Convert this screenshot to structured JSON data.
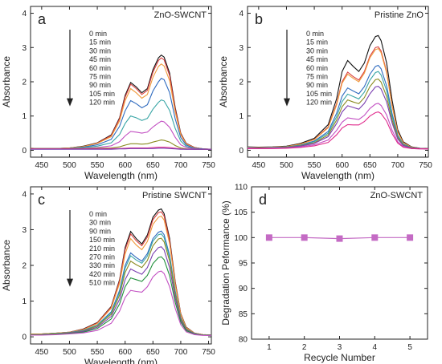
{
  "figure": {
    "panel_count": 4
  },
  "chart_data": [
    {
      "type": "line",
      "panel_letter": "a",
      "sample_label": "ZnO-SWCNT",
      "xlabel": "Wavelength (nm)",
      "ylabel": "Absorbance",
      "xlim": [
        430,
        755
      ],
      "ylim": [
        -0.2,
        4.2
      ],
      "xticks": [
        450,
        500,
        550,
        600,
        650,
        700,
        750
      ],
      "yticks": [
        0,
        1,
        2,
        3,
        4
      ],
      "legend_arrow": "down",
      "legend_position": "center-left",
      "x": [
        430,
        450,
        475,
        500,
        525,
        550,
        575,
        590,
        600,
        610,
        620,
        630,
        640,
        650,
        660,
        665,
        670,
        680,
        690,
        700,
        710,
        725,
        740,
        755
      ],
      "series": [
        {
          "name": "0 min",
          "color": "#111111",
          "values": [
            0.06,
            0.05,
            0.05,
            0.07,
            0.12,
            0.22,
            0.45,
            0.95,
            1.6,
            1.98,
            1.85,
            1.68,
            1.8,
            2.35,
            2.7,
            2.78,
            2.72,
            2.25,
            1.25,
            0.5,
            0.2,
            0.08,
            0.04,
            0.03
          ]
        },
        {
          "name": "15 min",
          "color": "#d94040",
          "values": [
            0.06,
            0.05,
            0.05,
            0.07,
            0.11,
            0.21,
            0.43,
            0.92,
            1.55,
            1.93,
            1.8,
            1.63,
            1.75,
            2.28,
            2.62,
            2.7,
            2.64,
            2.18,
            1.2,
            0.48,
            0.19,
            0.08,
            0.04,
            0.03
          ]
        },
        {
          "name": "30 min",
          "color": "#f09a3a",
          "values": [
            0.06,
            0.05,
            0.05,
            0.07,
            0.11,
            0.2,
            0.4,
            0.86,
            1.45,
            1.8,
            1.68,
            1.52,
            1.63,
            2.13,
            2.45,
            2.52,
            2.46,
            2.03,
            1.12,
            0.45,
            0.18,
            0.07,
            0.04,
            0.03
          ]
        },
        {
          "name": "45 min",
          "color": "#2f6bbf",
          "values": [
            0.05,
            0.05,
            0.05,
            0.06,
            0.09,
            0.16,
            0.32,
            0.7,
            1.15,
            1.45,
            1.36,
            1.24,
            1.33,
            1.73,
            2.0,
            2.1,
            2.06,
            1.68,
            0.92,
            0.37,
            0.15,
            0.06,
            0.04,
            0.03
          ]
        },
        {
          "name": "60 min",
          "color": "#3aa6a6",
          "values": [
            0.05,
            0.05,
            0.05,
            0.06,
            0.08,
            0.12,
            0.22,
            0.46,
            0.78,
            1.0,
            0.95,
            0.87,
            0.93,
            1.2,
            1.4,
            1.47,
            1.44,
            1.16,
            0.64,
            0.27,
            0.11,
            0.05,
            0.03,
            0.03
          ]
        },
        {
          "name": "75 min",
          "color": "#c24fc2",
          "values": [
            0.05,
            0.05,
            0.05,
            0.05,
            0.06,
            0.08,
            0.13,
            0.25,
            0.42,
            0.55,
            0.53,
            0.5,
            0.53,
            0.68,
            0.8,
            0.85,
            0.83,
            0.67,
            0.38,
            0.16,
            0.08,
            0.04,
            0.03,
            0.03
          ]
        },
        {
          "name": "90 min",
          "color": "#8a8a1f",
          "values": [
            0.05,
            0.05,
            0.05,
            0.05,
            0.05,
            0.06,
            0.07,
            0.1,
            0.15,
            0.19,
            0.19,
            0.18,
            0.19,
            0.24,
            0.28,
            0.3,
            0.29,
            0.24,
            0.14,
            0.07,
            0.04,
            0.03,
            0.03,
            0.03
          ]
        },
        {
          "name": "105 min",
          "color": "#e02a8c",
          "values": [
            0.04,
            0.04,
            0.04,
            0.04,
            0.04,
            0.04,
            0.05,
            0.05,
            0.06,
            0.07,
            0.07,
            0.07,
            0.07,
            0.08,
            0.09,
            0.09,
            0.09,
            0.08,
            0.06,
            0.04,
            0.03,
            0.03,
            0.03,
            0.03
          ]
        },
        {
          "name": "120 min",
          "color": "#7a3fb0",
          "values": [
            0.03,
            0.03,
            0.03,
            0.03,
            0.03,
            0.03,
            0.03,
            0.04,
            0.04,
            0.05,
            0.05,
            0.05,
            0.05,
            0.05,
            0.06,
            0.06,
            0.06,
            0.05,
            0.04,
            0.03,
            0.03,
            0.03,
            0.03,
            0.03
          ]
        }
      ]
    },
    {
      "type": "line",
      "panel_letter": "b",
      "sample_label": "Pristine ZnO",
      "xlabel": "Wavelength (nm)",
      "ylabel": "Absorbance",
      "xlim": [
        430,
        755
      ],
      "ylim": [
        -0.2,
        4.2
      ],
      "xticks": [
        450,
        500,
        550,
        600,
        650,
        700,
        750
      ],
      "yticks": [
        0,
        1,
        2,
        3,
        4
      ],
      "legend_arrow": "down",
      "legend_position": "center-left",
      "x": [
        430,
        450,
        475,
        500,
        525,
        550,
        575,
        590,
        600,
        610,
        620,
        630,
        640,
        650,
        660,
        665,
        670,
        680,
        690,
        700,
        710,
        725,
        740,
        755
      ],
      "series": [
        {
          "name": "0 min",
          "color": "#111111",
          "values": [
            0.1,
            0.09,
            0.1,
            0.12,
            0.2,
            0.35,
            0.75,
            1.5,
            2.3,
            2.62,
            2.45,
            2.3,
            2.55,
            3.05,
            3.32,
            3.35,
            3.2,
            2.55,
            1.45,
            0.6,
            0.25,
            0.1,
            0.06,
            0.05
          ]
        },
        {
          "name": "15 min",
          "color": "#d94040",
          "values": [
            0.09,
            0.08,
            0.09,
            0.11,
            0.18,
            0.32,
            0.68,
            1.36,
            2.0,
            2.28,
            2.15,
            2.05,
            2.3,
            2.75,
            3.0,
            3.02,
            2.9,
            2.3,
            1.3,
            0.54,
            0.22,
            0.09,
            0.05,
            0.04
          ]
        },
        {
          "name": "30 min",
          "color": "#f09a3a",
          "values": [
            0.09,
            0.08,
            0.09,
            0.11,
            0.18,
            0.31,
            0.66,
            1.32,
            1.96,
            2.22,
            2.1,
            2.0,
            2.25,
            2.7,
            2.94,
            2.97,
            2.85,
            2.26,
            1.28,
            0.53,
            0.22,
            0.09,
            0.05,
            0.04
          ]
        },
        {
          "name": "45 min",
          "color": "#2f6bbf",
          "values": [
            0.08,
            0.07,
            0.08,
            0.1,
            0.15,
            0.27,
            0.55,
            1.08,
            1.58,
            1.82,
            1.73,
            1.65,
            1.86,
            2.22,
            2.45,
            2.48,
            2.38,
            1.88,
            1.06,
            0.44,
            0.18,
            0.08,
            0.05,
            0.04
          ]
        },
        {
          "name": "60 min",
          "color": "#3aa6a6",
          "values": [
            0.08,
            0.07,
            0.08,
            0.1,
            0.14,
            0.25,
            0.5,
            0.98,
            1.42,
            1.64,
            1.57,
            1.5,
            1.7,
            2.05,
            2.27,
            2.3,
            2.2,
            1.74,
            0.98,
            0.41,
            0.17,
            0.07,
            0.05,
            0.04
          ]
        },
        {
          "name": "75 min",
          "color": "#8a8a1f",
          "values": [
            0.07,
            0.06,
            0.07,
            0.09,
            0.13,
            0.22,
            0.45,
            0.88,
            1.27,
            1.47,
            1.41,
            1.36,
            1.54,
            1.86,
            2.06,
            2.08,
            1.99,
            1.57,
            0.88,
            0.37,
            0.15,
            0.07,
            0.05,
            0.04
          ]
        },
        {
          "name": "90 min",
          "color": "#7a3fb0",
          "values": [
            0.07,
            0.06,
            0.07,
            0.08,
            0.12,
            0.2,
            0.4,
            0.78,
            1.12,
            1.3,
            1.25,
            1.2,
            1.37,
            1.65,
            1.85,
            1.87,
            1.79,
            1.41,
            0.79,
            0.33,
            0.14,
            0.06,
            0.05,
            0.04
          ]
        },
        {
          "name": "105 min",
          "color": "#c24fc2",
          "values": [
            0.06,
            0.05,
            0.06,
            0.07,
            0.1,
            0.16,
            0.3,
            0.58,
            0.82,
            0.95,
            0.92,
            0.9,
            1.02,
            1.22,
            1.35,
            1.37,
            1.31,
            1.03,
            0.58,
            0.25,
            0.11,
            0.05,
            0.04,
            0.04
          ]
        },
        {
          "name": "120 min",
          "color": "#e02a8c",
          "values": [
            0.05,
            0.05,
            0.05,
            0.06,
            0.08,
            0.13,
            0.23,
            0.45,
            0.65,
            0.75,
            0.74,
            0.74,
            0.84,
            1.0,
            1.1,
            1.12,
            1.07,
            0.85,
            0.48,
            0.21,
            0.09,
            0.05,
            0.04,
            0.04
          ]
        }
      ]
    },
    {
      "type": "line",
      "panel_letter": "c",
      "sample_label": "Pristine SWCNT",
      "xlabel": "Wavelength (nm)",
      "ylabel": "Absorbance",
      "xlim": [
        430,
        755
      ],
      "ylim": [
        -0.2,
        4.2
      ],
      "xticks": [
        450,
        500,
        550,
        600,
        650,
        700,
        750
      ],
      "yticks": [
        0,
        1,
        2,
        3,
        4
      ],
      "legend_arrow": "down",
      "legend_position": "center-left",
      "x": [
        430,
        450,
        475,
        500,
        525,
        550,
        575,
        590,
        600,
        610,
        620,
        630,
        640,
        650,
        660,
        665,
        670,
        680,
        690,
        700,
        710,
        725,
        740,
        755
      ],
      "series": [
        {
          "name": "0 min",
          "color": "#111111",
          "values": [
            0.08,
            0.08,
            0.1,
            0.13,
            0.22,
            0.4,
            0.85,
            1.6,
            2.5,
            2.95,
            2.75,
            2.6,
            2.85,
            3.35,
            3.55,
            3.58,
            3.45,
            2.75,
            1.55,
            0.65,
            0.27,
            0.1,
            0.06,
            0.05
          ]
        },
        {
          "name": "30 min",
          "color": "#d94040",
          "values": [
            0.08,
            0.08,
            0.1,
            0.13,
            0.21,
            0.39,
            0.83,
            1.57,
            2.44,
            2.88,
            2.69,
            2.55,
            2.79,
            3.28,
            3.48,
            3.5,
            3.38,
            2.69,
            1.52,
            0.64,
            0.26,
            0.1,
            0.06,
            0.05
          ]
        },
        {
          "name": "90 min",
          "color": "#f09a3a",
          "values": [
            0.08,
            0.08,
            0.1,
            0.13,
            0.2,
            0.37,
            0.8,
            1.5,
            2.32,
            2.75,
            2.57,
            2.44,
            2.67,
            3.15,
            3.35,
            3.38,
            3.27,
            2.6,
            1.47,
            0.62,
            0.25,
            0.1,
            0.06,
            0.05
          ]
        },
        {
          "name": "150 min",
          "color": "#2f6bbf",
          "values": [
            0.07,
            0.07,
            0.09,
            0.12,
            0.18,
            0.33,
            0.7,
            1.3,
            2.0,
            2.35,
            2.22,
            2.12,
            2.33,
            2.75,
            2.93,
            2.96,
            2.86,
            2.28,
            1.29,
            0.54,
            0.22,
            0.09,
            0.05,
            0.05
          ]
        },
        {
          "name": "210 min",
          "color": "#3aa6a6",
          "values": [
            0.07,
            0.07,
            0.09,
            0.11,
            0.17,
            0.32,
            0.67,
            1.25,
            1.92,
            2.27,
            2.15,
            2.06,
            2.26,
            2.68,
            2.86,
            2.88,
            2.78,
            2.22,
            1.25,
            0.53,
            0.22,
            0.09,
            0.05,
            0.05
          ]
        },
        {
          "name": "270 min",
          "color": "#8a8a1f",
          "values": [
            0.07,
            0.07,
            0.08,
            0.11,
            0.16,
            0.3,
            0.63,
            1.17,
            1.8,
            2.12,
            2.02,
            1.94,
            2.14,
            2.55,
            2.74,
            2.76,
            2.66,
            2.12,
            1.2,
            0.5,
            0.21,
            0.08,
            0.05,
            0.05
          ]
        },
        {
          "name": "330 min",
          "color": "#7a3fb0",
          "values": [
            0.06,
            0.06,
            0.07,
            0.1,
            0.15,
            0.27,
            0.57,
            1.05,
            1.6,
            1.9,
            1.82,
            1.75,
            1.94,
            2.32,
            2.5,
            2.52,
            2.43,
            1.93,
            1.09,
            0.46,
            0.19,
            0.08,
            0.05,
            0.04
          ]
        },
        {
          "name": "420 min",
          "color": "#1f8f3a",
          "values": [
            0.06,
            0.06,
            0.07,
            0.09,
            0.13,
            0.23,
            0.5,
            0.92,
            1.4,
            1.65,
            1.6,
            1.55,
            1.72,
            2.05,
            2.22,
            2.24,
            2.16,
            1.71,
            0.97,
            0.41,
            0.17,
            0.07,
            0.05,
            0.04
          ]
        },
        {
          "name": "510 min",
          "color": "#c24fc2",
          "values": [
            0.05,
            0.05,
            0.06,
            0.08,
            0.11,
            0.18,
            0.38,
            0.72,
            1.1,
            1.3,
            1.27,
            1.25,
            1.4,
            1.68,
            1.82,
            1.84,
            1.77,
            1.4,
            0.8,
            0.34,
            0.14,
            0.06,
            0.04,
            0.04
          ]
        }
      ]
    },
    {
      "type": "line",
      "panel_letter": "d",
      "sample_label": "ZnO-SWCNT",
      "xlabel": "Recycle Number",
      "ylabel": "Degradation Peformance (%)",
      "xlim": [
        0.5,
        5.5
      ],
      "ylim": [
        80,
        110
      ],
      "xticks": [
        1,
        2,
        3,
        4,
        5
      ],
      "yticks": [
        80,
        85,
        90,
        95,
        100,
        105,
        110
      ],
      "marker": "square",
      "x": [
        1,
        2,
        3,
        4,
        5
      ],
      "series": [
        {
          "name": "",
          "color": "#c46bc4",
          "values": [
            100,
            100,
            99.8,
            100,
            100
          ]
        }
      ]
    }
  ]
}
